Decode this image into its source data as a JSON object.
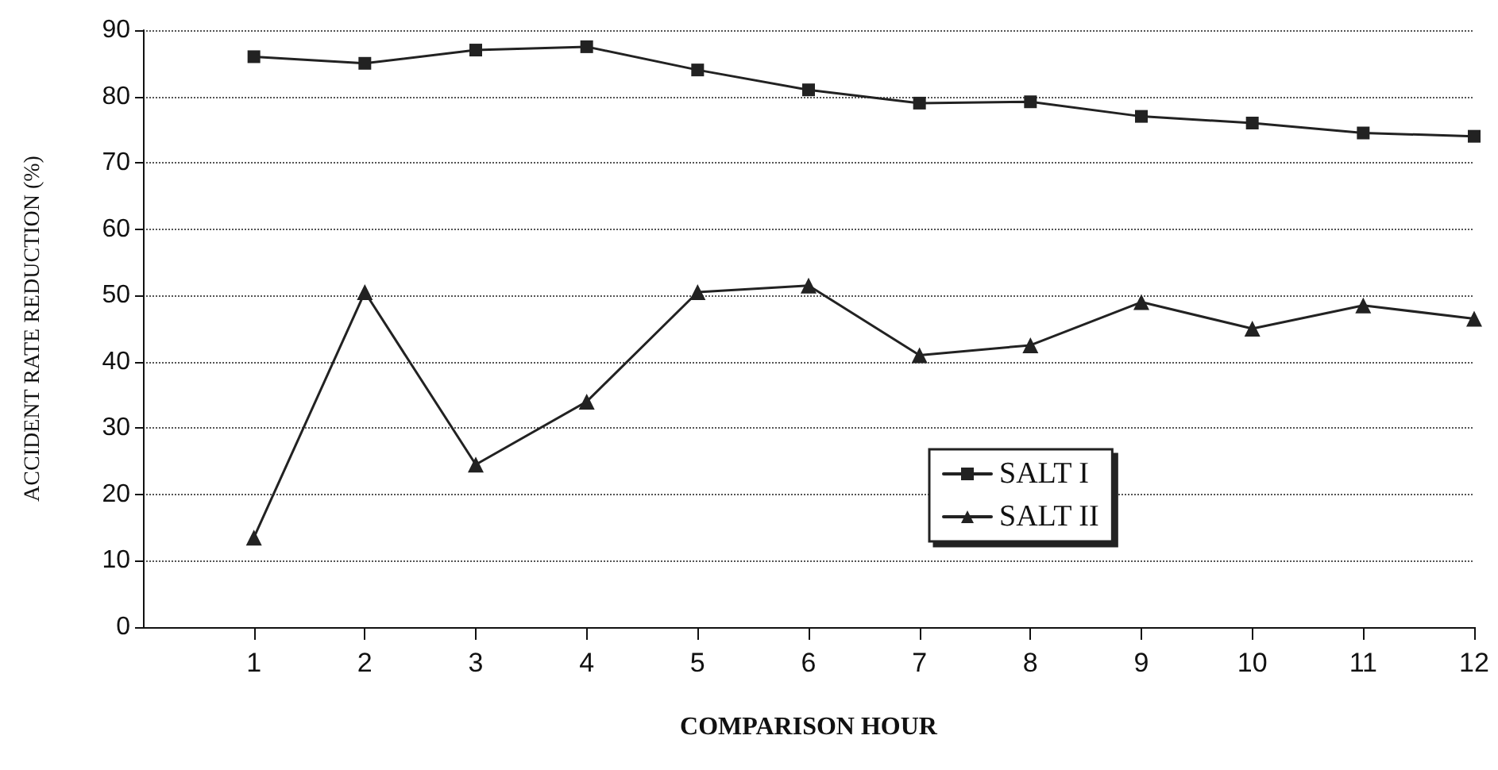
{
  "chart_data": {
    "type": "line",
    "xlabel": "COMPARISON HOUR",
    "ylabel": "ACCIDENT RATE REDUCTION (%)",
    "x": [
      1,
      2,
      3,
      4,
      5,
      6,
      7,
      8,
      9,
      10,
      11,
      12
    ],
    "xlim": [
      0,
      12
    ],
    "xticks": [
      1,
      2,
      3,
      4,
      5,
      6,
      7,
      8,
      9,
      10,
      11,
      12
    ],
    "ylim": [
      0,
      90
    ],
    "yticks": [
      0,
      10,
      20,
      30,
      40,
      50,
      60,
      70,
      80,
      90
    ],
    "grid": "y",
    "legend": "bottom",
    "line_style": "solid",
    "series": [
      {
        "name": "SALT I",
        "color": "#222222",
        "marker": "square",
        "values": [
          86,
          85,
          87,
          87.5,
          84,
          81,
          79,
          79.2,
          77,
          76,
          74.5,
          74
        ]
      },
      {
        "name": "SALT II",
        "color": "#222222",
        "marker": "triangle",
        "values": [
          13.5,
          50.5,
          24.5,
          34,
          50.5,
          51.5,
          41,
          42.5,
          49,
          45,
          48.5,
          46.5
        ]
      }
    ]
  }
}
